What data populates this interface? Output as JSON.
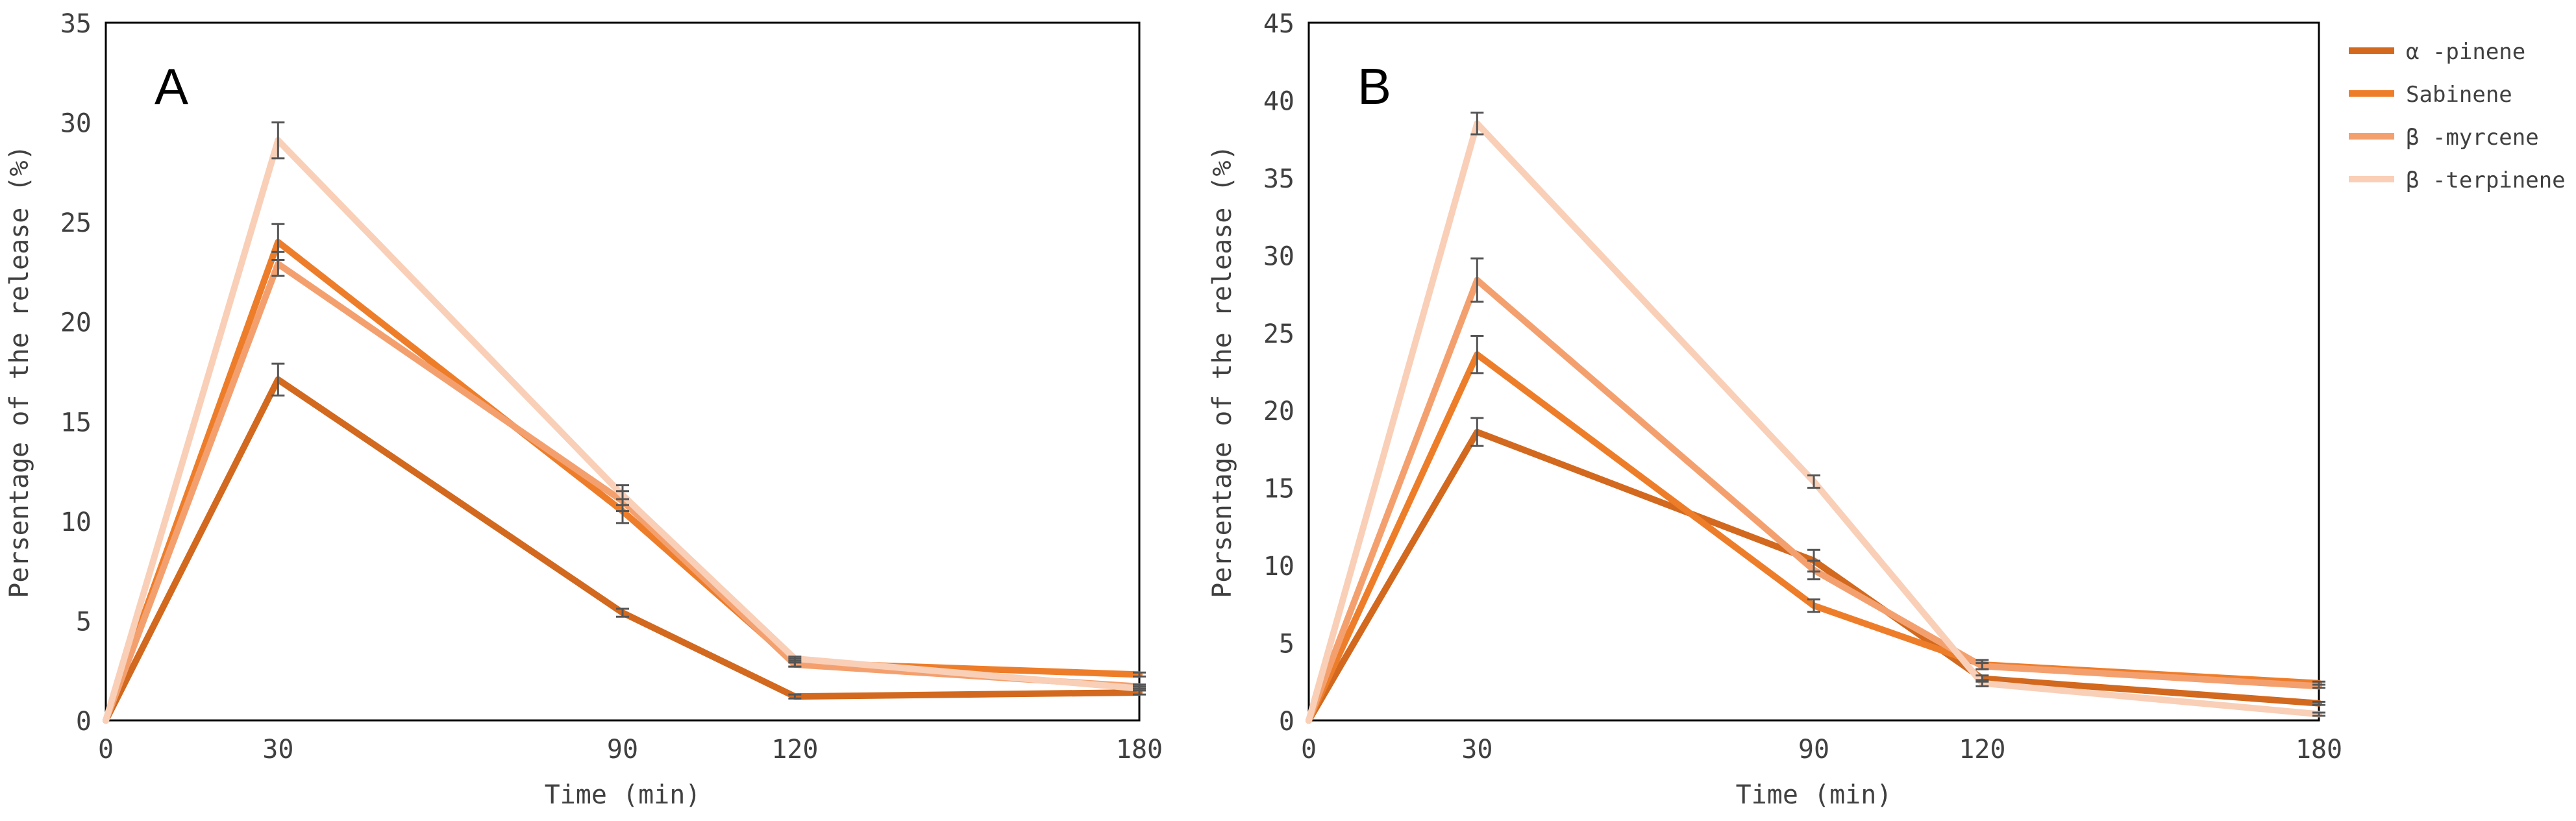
{
  "chart_data": [
    {
      "type": "line",
      "panel_label": "A",
      "xlabel": "Time (min)",
      "ylabel": "Persentage of the release (%)",
      "categories": [
        "0",
        "30",
        "90",
        "120",
        "180"
      ],
      "x": [
        0,
        30,
        90,
        120,
        180
      ],
      "ylim": [
        0,
        35
      ],
      "yticks": [
        0,
        5,
        10,
        15,
        20,
        25,
        30,
        35
      ],
      "yticks_labels": [
        "0",
        "5",
        "10",
        "15",
        "20",
        "25",
        "30",
        "35"
      ],
      "grid": false,
      "series": [
        {
          "name": "α-pinene",
          "color": "#D2691E",
          "values": [
            0,
            17.1,
            5.4,
            1.2,
            1.4
          ],
          "errors": [
            0,
            0.8,
            0.2,
            0.1,
            0.1
          ]
        },
        {
          "name": "Sabinene",
          "color": "#EE7D2A",
          "values": [
            0,
            24.0,
            10.5,
            2.9,
            2.3
          ],
          "errors": [
            0,
            0.9,
            0.6,
            0.2,
            0.1
          ]
        },
        {
          "name": "β-myrcene",
          "color": "#F4A06E",
          "values": [
            0,
            22.9,
            11.0,
            2.8,
            1.7
          ],
          "errors": [
            0,
            0.6,
            0.5,
            0.1,
            0.1
          ]
        },
        {
          "name": "β-terpinene",
          "color": "#F9CFB7",
          "values": [
            0,
            29.1,
            11.3,
            3.1,
            1.6
          ],
          "errors": [
            0,
            0.9,
            0.5,
            0.1,
            0.1
          ]
        }
      ]
    },
    {
      "type": "line",
      "panel_label": "B",
      "xlabel": "Time (min)",
      "ylabel": "Persentage of the release (%)",
      "categories": [
        "0",
        "30",
        "90",
        "120",
        "180"
      ],
      "x": [
        0,
        30,
        90,
        120,
        180
      ],
      "ylim": [
        0,
        45
      ],
      "yticks": [
        0,
        5,
        10,
        15,
        20,
        25,
        30,
        35,
        40,
        45
      ],
      "yticks_labels": [
        "0",
        "5",
        "10",
        "15",
        "20",
        "25",
        "30",
        "35",
        "40",
        "45"
      ],
      "grid": false,
      "legend_position": "right",
      "series": [
        {
          "name": "α-pinene",
          "color": "#D2691E",
          "values": [
            0,
            18.6,
            10.3,
            2.7,
            1.1
          ],
          "errors": [
            0,
            0.9,
            0.7,
            0.2,
            0.1
          ]
        },
        {
          "name": "Sabinene",
          "color": "#EE7D2A",
          "values": [
            0,
            23.6,
            7.4,
            3.6,
            2.4
          ],
          "errors": [
            0,
            1.2,
            0.4,
            0.3,
            0.1
          ]
        },
        {
          "name": "β-myrcene",
          "color": "#F4A06E",
          "values": [
            0,
            28.4,
            9.7,
            3.5,
            2.2
          ],
          "errors": [
            0,
            1.4,
            0.6,
            0.2,
            0.1
          ]
        },
        {
          "name": "β-terpinene",
          "color": "#F9CFB7",
          "values": [
            0,
            38.5,
            15.4,
            2.4,
            0.4
          ],
          "errors": [
            0,
            0.7,
            0.4,
            0.2,
            0.1
          ]
        }
      ]
    }
  ],
  "legend": {
    "items": [
      {
        "label": "α -pinene",
        "color": "#D2691E"
      },
      {
        "label": "Sabinene",
        "color": "#EE7D2A"
      },
      {
        "label": "β -myrcene",
        "color": "#F4A06E"
      },
      {
        "label": "β -terpinene",
        "color": "#F9CFB7"
      }
    ]
  }
}
